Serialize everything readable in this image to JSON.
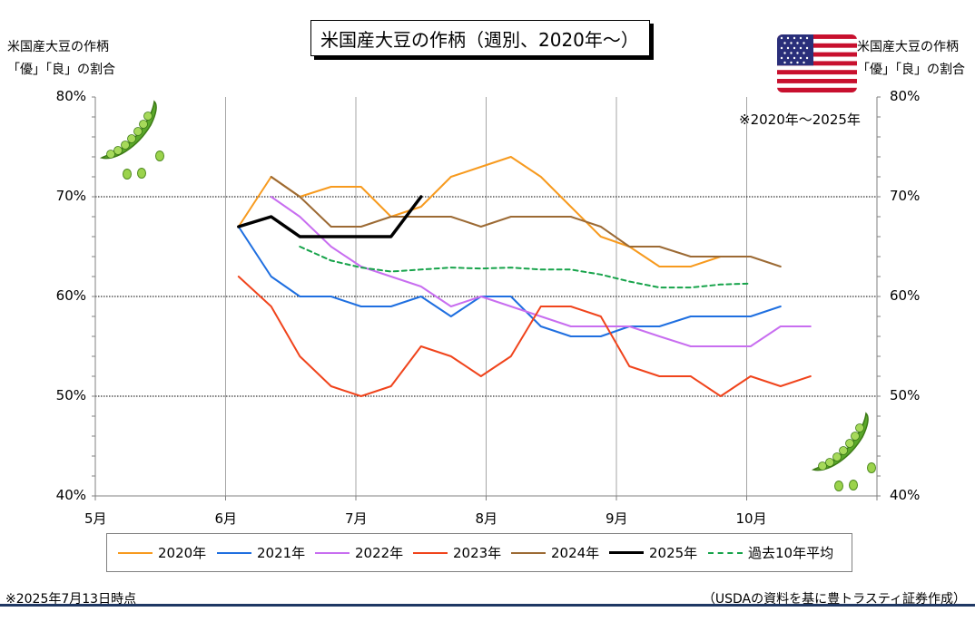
{
  "chart_data": {
    "type": "line",
    "title": "米国産大豆の作柄（週別、2020年〜）",
    "ylabel_left": [
      "米国産大豆の作柄",
      "「優」「良」の割合"
    ],
    "ylabel_right": [
      "米国産大豆の作柄",
      "「優」「良」の割合"
    ],
    "y_ticks": [
      "40%",
      "50%",
      "60%",
      "70%",
      "80%"
    ],
    "ylim": [
      40,
      80
    ],
    "x_ticks": [
      "5月",
      "6月",
      "7月",
      "8月",
      "9月",
      "10月"
    ],
    "x_unit": "month index (5 = May 1, 6 = June 1, …)",
    "xlim": [
      5,
      11
    ],
    "grid": "horizontal at 50/60/70%, vertical at month starts",
    "note": "※2020年〜2025年",
    "legend_position": "bottom",
    "series": [
      {
        "name": "2020年",
        "color": "#f79a1e",
        "dash": "solid",
        "width": 2,
        "x": [
          6.1,
          6.35,
          6.57,
          6.81,
          7.04,
          7.27,
          7.5,
          7.73,
          7.96,
          8.19,
          8.42,
          8.65,
          8.88,
          9.1,
          9.33,
          9.57,
          9.8
        ],
        "y": [
          67,
          72,
          70,
          71,
          71,
          68,
          69,
          72,
          73,
          74,
          72,
          69,
          66,
          65,
          63,
          63,
          64
        ]
      },
      {
        "name": "2021年",
        "color": "#1f6fe0",
        "dash": "solid",
        "width": 2,
        "x": [
          6.1,
          6.35,
          6.57,
          6.81,
          7.04,
          7.27,
          7.5,
          7.73,
          7.96,
          8.19,
          8.42,
          8.65,
          8.88,
          9.1,
          9.33,
          9.57,
          9.8,
          10.03,
          10.26
        ],
        "y": [
          67,
          62,
          60,
          60,
          59,
          59,
          60,
          58,
          60,
          60,
          57,
          56,
          56,
          57,
          57,
          58,
          58,
          58,
          59
        ]
      },
      {
        "name": "2022年",
        "color": "#c86ef0",
        "dash": "solid",
        "width": 2,
        "x": [
          6.35,
          6.57,
          6.81,
          7.04,
          7.27,
          7.5,
          7.73,
          7.96,
          8.19,
          8.42,
          8.65,
          8.88,
          9.1,
          9.33,
          9.57,
          9.8,
          10.03,
          10.26,
          10.49
        ],
        "y": [
          70,
          68,
          65,
          63,
          62,
          61,
          59,
          60,
          59,
          58,
          57,
          57,
          57,
          56,
          55,
          55,
          55,
          57,
          57
        ]
      },
      {
        "name": "2023年",
        "color": "#f0441c",
        "dash": "solid",
        "width": 2,
        "x": [
          6.1,
          6.35,
          6.57,
          6.81,
          7.04,
          7.27,
          7.5,
          7.73,
          7.96,
          8.19,
          8.42,
          8.65,
          8.88,
          9.1,
          9.33,
          9.57,
          9.8,
          10.03,
          10.26,
          10.49
        ],
        "y": [
          62,
          59,
          54,
          51,
          50,
          51,
          55,
          54,
          52,
          54,
          59,
          59,
          58,
          53,
          52,
          52,
          50,
          52,
          51,
          52
        ]
      },
      {
        "name": "2024年",
        "color": "#9c6a34",
        "dash": "solid",
        "width": 2,
        "x": [
          6.35,
          6.57,
          6.81,
          7.04,
          7.27,
          7.5,
          7.73,
          7.96,
          8.19,
          8.42,
          8.65,
          8.88,
          9.1,
          9.33,
          9.57,
          9.8,
          10.03,
          10.26
        ],
        "y": [
          72,
          70,
          67,
          67,
          68,
          68,
          68,
          67,
          68,
          68,
          68,
          67,
          65,
          65,
          64,
          64,
          64,
          63
        ]
      },
      {
        "name": "2025年",
        "color": "#000000",
        "dash": "solid",
        "width": 3.5,
        "x": [
          6.1,
          6.35,
          6.57,
          6.81,
          7.04,
          7.27,
          7.5
        ],
        "y": [
          67,
          68,
          66,
          66,
          66,
          66,
          70
        ]
      },
      {
        "name": "過去10年平均",
        "color": "#16a34a",
        "dash": "dashed",
        "width": 2,
        "x": [
          6.57,
          6.81,
          7.04,
          7.27,
          7.5,
          7.73,
          7.96,
          8.19,
          8.42,
          8.65,
          8.88,
          9.1,
          9.33,
          9.57,
          9.8,
          10.03
        ],
        "y": [
          65,
          63.6,
          62.9,
          62.5,
          62.7,
          62.9,
          62.8,
          62.9,
          62.7,
          62.7,
          62.2,
          61.5,
          60.9,
          60.9,
          61.2,
          61.3
        ]
      }
    ]
  },
  "footer": {
    "left": "※2025年7月13日時点",
    "right": "（USDAの資料を基に豊トラスティ証券作成）"
  },
  "icons": {
    "flag": "us-flag-icon",
    "decor": "green-soybean-pod-icon"
  }
}
